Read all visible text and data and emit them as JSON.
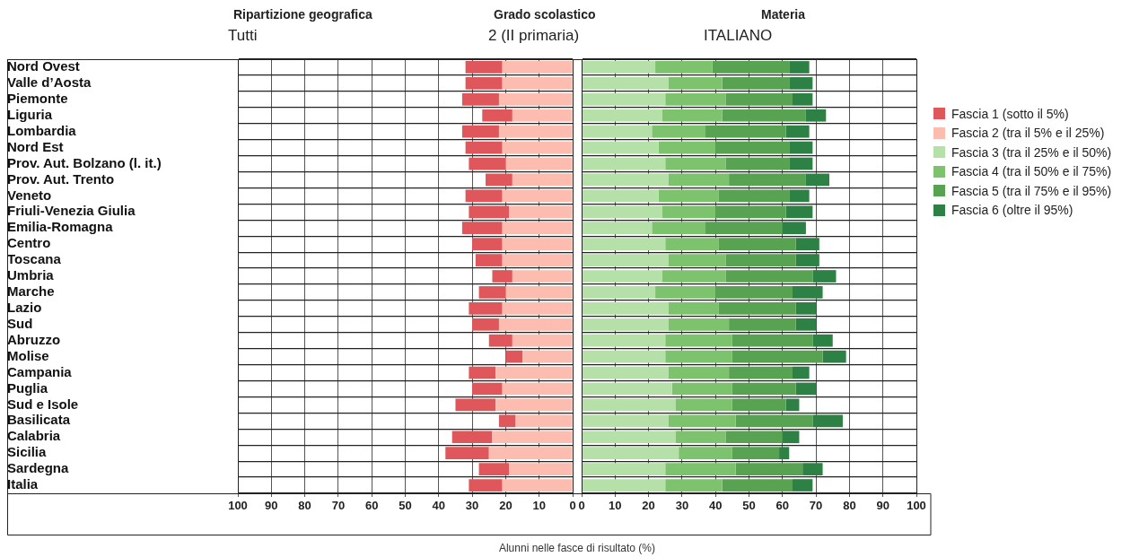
{
  "chart_data": [
    {
      "type": "bar",
      "orientation": "horizontal",
      "stacked": true,
      "annotations": [
        "Ripartizione geografica",
        "Tutti",
        "Grado scolastico",
        "2 (II primaria)",
        "Materia",
        "ITALIANO"
      ],
      "categories": [
        "Nord Ovest",
        "Valle d’Aosta",
        "Piemonte",
        "Liguria",
        "Lombardia",
        "Nord Est",
        "Prov. Aut. Bolzano (l. it.)",
        "Prov. Aut. Trento",
        "Veneto",
        "Friuli-Venezia Giulia",
        "Emilia-Romagna",
        "Centro",
        "Toscana",
        "Umbria",
        "Marche",
        "Lazio",
        "Sud",
        "Abruzzo",
        "Molise",
        "Campania",
        "Puglia",
        "Sud e Isole",
        "Basilicata",
        "Calabria",
        "Sicilia",
        "Sardegna",
        "Italia"
      ],
      "series": [
        {
          "name": "Fascia 2 (tra il 5% e il 25%)",
          "color": "#fdbcb0",
          "values": [
            21,
            21,
            22,
            18,
            22,
            21,
            20,
            18,
            21,
            19,
            21,
            21,
            21,
            18,
            20,
            21,
            22,
            18,
            15,
            23,
            21,
            23,
            17,
            24,
            25,
            19,
            21
          ]
        },
        {
          "name": "Fascia 1 (sotto il 5%)",
          "color": "#e0575b",
          "values": [
            11,
            11,
            11,
            9,
            11,
            11,
            11,
            8,
            11,
            12,
            12,
            9,
            8,
            6,
            8,
            10,
            8,
            7,
            5,
            8,
            9,
            12,
            5,
            12,
            13,
            9,
            10
          ]
        }
      ],
      "xlim": [
        100,
        0
      ],
      "xticks": [
        100,
        90,
        80,
        70,
        60,
        50,
        40,
        30,
        20,
        10,
        0
      ],
      "grid": true,
      "legend": "right"
    },
    {
      "type": "bar",
      "orientation": "horizontal",
      "stacked": true,
      "xlabel": "Alunni nelle fasce di risultato (%)",
      "categories": [
        null,
        null,
        null,
        null,
        null,
        null,
        null,
        null,
        null,
        null,
        null,
        null,
        null,
        null,
        null,
        null,
        null,
        null,
        null,
        null,
        null,
        null,
        null,
        null,
        null,
        null,
        null
      ],
      "series": [
        {
          "name": "Fascia 3 (tra il 25% e il 50%)",
          "color": "#b5e0a8",
          "values": [
            22,
            26,
            25,
            24,
            21,
            23,
            25,
            26,
            23,
            24,
            21,
            25,
            26,
            24,
            22,
            26,
            26,
            25,
            25,
            26,
            27,
            28,
            26,
            28,
            29,
            25,
            25
          ]
        },
        {
          "name": "Fascia 4 (tra il 50% e il 75%)",
          "color": "#7dc26d",
          "values": [
            17,
            16,
            18,
            18,
            16,
            17,
            18,
            18,
            18,
            16,
            16,
            16,
            17,
            19,
            18,
            15,
            18,
            20,
            20,
            18,
            18,
            17,
            20,
            15,
            16,
            21,
            17
          ]
        },
        {
          "name": "Fascia 5 (tra il 75% e il 95%)",
          "color": "#58a351",
          "values": [
            23,
            20,
            20,
            25,
            24,
            22,
            19,
            23,
            21,
            21,
            23,
            23,
            21,
            26,
            23,
            23,
            20,
            24,
            27,
            19,
            19,
            16,
            23,
            17,
            14,
            20,
            21
          ]
        },
        {
          "name": "Fascia 6 (oltre il 95%)",
          "color": "#2e8144",
          "values": [
            6,
            7,
            6,
            6,
            7,
            7,
            7,
            7,
            6,
            8,
            7,
            7,
            7,
            7,
            9,
            6,
            6,
            6,
            7,
            5,
            6,
            4,
            9,
            5,
            3,
            6,
            6
          ]
        }
      ],
      "xlim": [
        0,
        100
      ],
      "xticks": [
        0,
        10,
        20,
        30,
        40,
        50,
        60,
        70,
        80,
        90,
        100
      ],
      "grid": true,
      "legend": "right"
    }
  ]
}
